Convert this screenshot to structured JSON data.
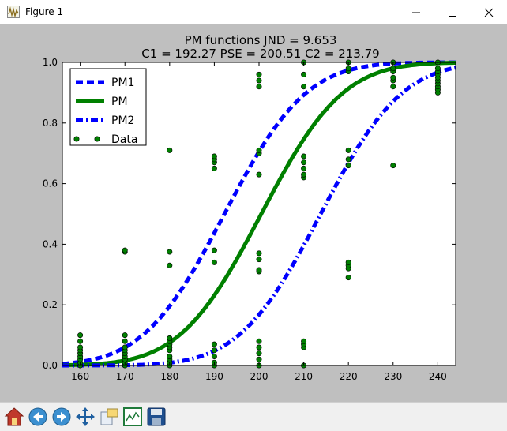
{
  "window": {
    "title": "Figure 1"
  },
  "toolbar": {
    "buttons": [
      {
        "name": "home-button",
        "icon": "home-icon"
      },
      {
        "name": "back-button",
        "icon": "arrow-left-icon"
      },
      {
        "name": "forward-button",
        "icon": "arrow-right-icon"
      },
      {
        "name": "pan-button",
        "icon": "move-icon"
      },
      {
        "name": "zoom-button",
        "icon": "zoom-rect-icon"
      },
      {
        "name": "subplots-button",
        "icon": "subplots-icon"
      },
      {
        "name": "save-button",
        "icon": "floppy-disk-icon"
      }
    ]
  },
  "chart_data": {
    "type": "line",
    "title_line1": "PM functions   JND = 9.653",
    "title_line2": "C1 = 192.27   PSE = 200.51   C2 = 213.79",
    "xlabel": "",
    "ylabel": "",
    "xlim": [
      156,
      244
    ],
    "ylim": [
      0,
      1
    ],
    "xticks": [
      160,
      170,
      180,
      190,
      200,
      210,
      220,
      230,
      240
    ],
    "yticks": [
      0.0,
      0.2,
      0.4,
      0.6,
      0.8,
      1.0
    ],
    "grid": false,
    "legend_position": "top-left",
    "series": [
      {
        "name": "PM1",
        "style": "dashed",
        "color": "#0000ff",
        "mu": 192.27,
        "sigma": 14.31
      },
      {
        "name": "PM",
        "style": "solid",
        "color": "#008000",
        "mu": 200.51,
        "sigma": 14.31
      },
      {
        "name": "PM2",
        "style": "dashdot",
        "color": "#0000ff",
        "mu": 213.79,
        "sigma": 14.31
      },
      {
        "name": "Data",
        "style": "markers",
        "color": "#008000",
        "points": [
          [
            160,
            0.0
          ],
          [
            160,
            0.01
          ],
          [
            160,
            0.02
          ],
          [
            160,
            0.03
          ],
          [
            160,
            0.04
          ],
          [
            160,
            0.05
          ],
          [
            160,
            0.06
          ],
          [
            160,
            0.08
          ],
          [
            160,
            0.1
          ],
          [
            170,
            0.0
          ],
          [
            170,
            0.01
          ],
          [
            170,
            0.02
          ],
          [
            170,
            0.03
          ],
          [
            170,
            0.04
          ],
          [
            170,
            0.05
          ],
          [
            170,
            0.06
          ],
          [
            170,
            0.08
          ],
          [
            170,
            0.1
          ],
          [
            170,
            0.375
          ],
          [
            170,
            0.38
          ],
          [
            180,
            0.0
          ],
          [
            180,
            0.01
          ],
          [
            180,
            0.02
          ],
          [
            180,
            0.03
          ],
          [
            180,
            0.05
          ],
          [
            180,
            0.06
          ],
          [
            180,
            0.07
          ],
          [
            180,
            0.08
          ],
          [
            180,
            0.09
          ],
          [
            180,
            0.33
          ],
          [
            180,
            0.375
          ],
          [
            180,
            0.71
          ],
          [
            190,
            0.0
          ],
          [
            190,
            0.01
          ],
          [
            190,
            0.03
          ],
          [
            190,
            0.05
          ],
          [
            190,
            0.07
          ],
          [
            190,
            0.34
          ],
          [
            190,
            0.38
          ],
          [
            190,
            0.65
          ],
          [
            190,
            0.67
          ],
          [
            190,
            0.68
          ],
          [
            190,
            0.69
          ],
          [
            200,
            0.0
          ],
          [
            200,
            0.02
          ],
          [
            200,
            0.04
          ],
          [
            200,
            0.06
          ],
          [
            200,
            0.08
          ],
          [
            200,
            0.31
          ],
          [
            200,
            0.315
          ],
          [
            200,
            0.35
          ],
          [
            200,
            0.37
          ],
          [
            200,
            0.63
          ],
          [
            200,
            0.7
          ],
          [
            200,
            0.71
          ],
          [
            200,
            0.92
          ],
          [
            200,
            0.94
          ],
          [
            200,
            0.96
          ],
          [
            210,
            0.0
          ],
          [
            210,
            0.06
          ],
          [
            210,
            0.07
          ],
          [
            210,
            0.08
          ],
          [
            210,
            0.62
          ],
          [
            210,
            0.63
          ],
          [
            210,
            0.65
          ],
          [
            210,
            0.67
          ],
          [
            210,
            0.69
          ],
          [
            210,
            0.92
          ],
          [
            210,
            0.96
          ],
          [
            210,
            1.0
          ],
          [
            220,
            0.29
          ],
          [
            220,
            0.32
          ],
          [
            220,
            0.33
          ],
          [
            220,
            0.34
          ],
          [
            220,
            0.66
          ],
          [
            220,
            0.68
          ],
          [
            220,
            0.71
          ],
          [
            220,
            0.97
          ],
          [
            220,
            0.98
          ],
          [
            220,
            1.0
          ],
          [
            230,
            0.66
          ],
          [
            230,
            0.92
          ],
          [
            230,
            0.94
          ],
          [
            230,
            0.95
          ],
          [
            230,
            0.97
          ],
          [
            230,
            0.98
          ],
          [
            230,
            1.0
          ],
          [
            240,
            0.9
          ],
          [
            240,
            0.91
          ],
          [
            240,
            0.92
          ],
          [
            240,
            0.93
          ],
          [
            240,
            0.94
          ],
          [
            240,
            0.95
          ],
          [
            240,
            0.96
          ],
          [
            240,
            0.97
          ],
          [
            240,
            0.98
          ],
          [
            240,
            1.0
          ]
        ]
      }
    ]
  }
}
